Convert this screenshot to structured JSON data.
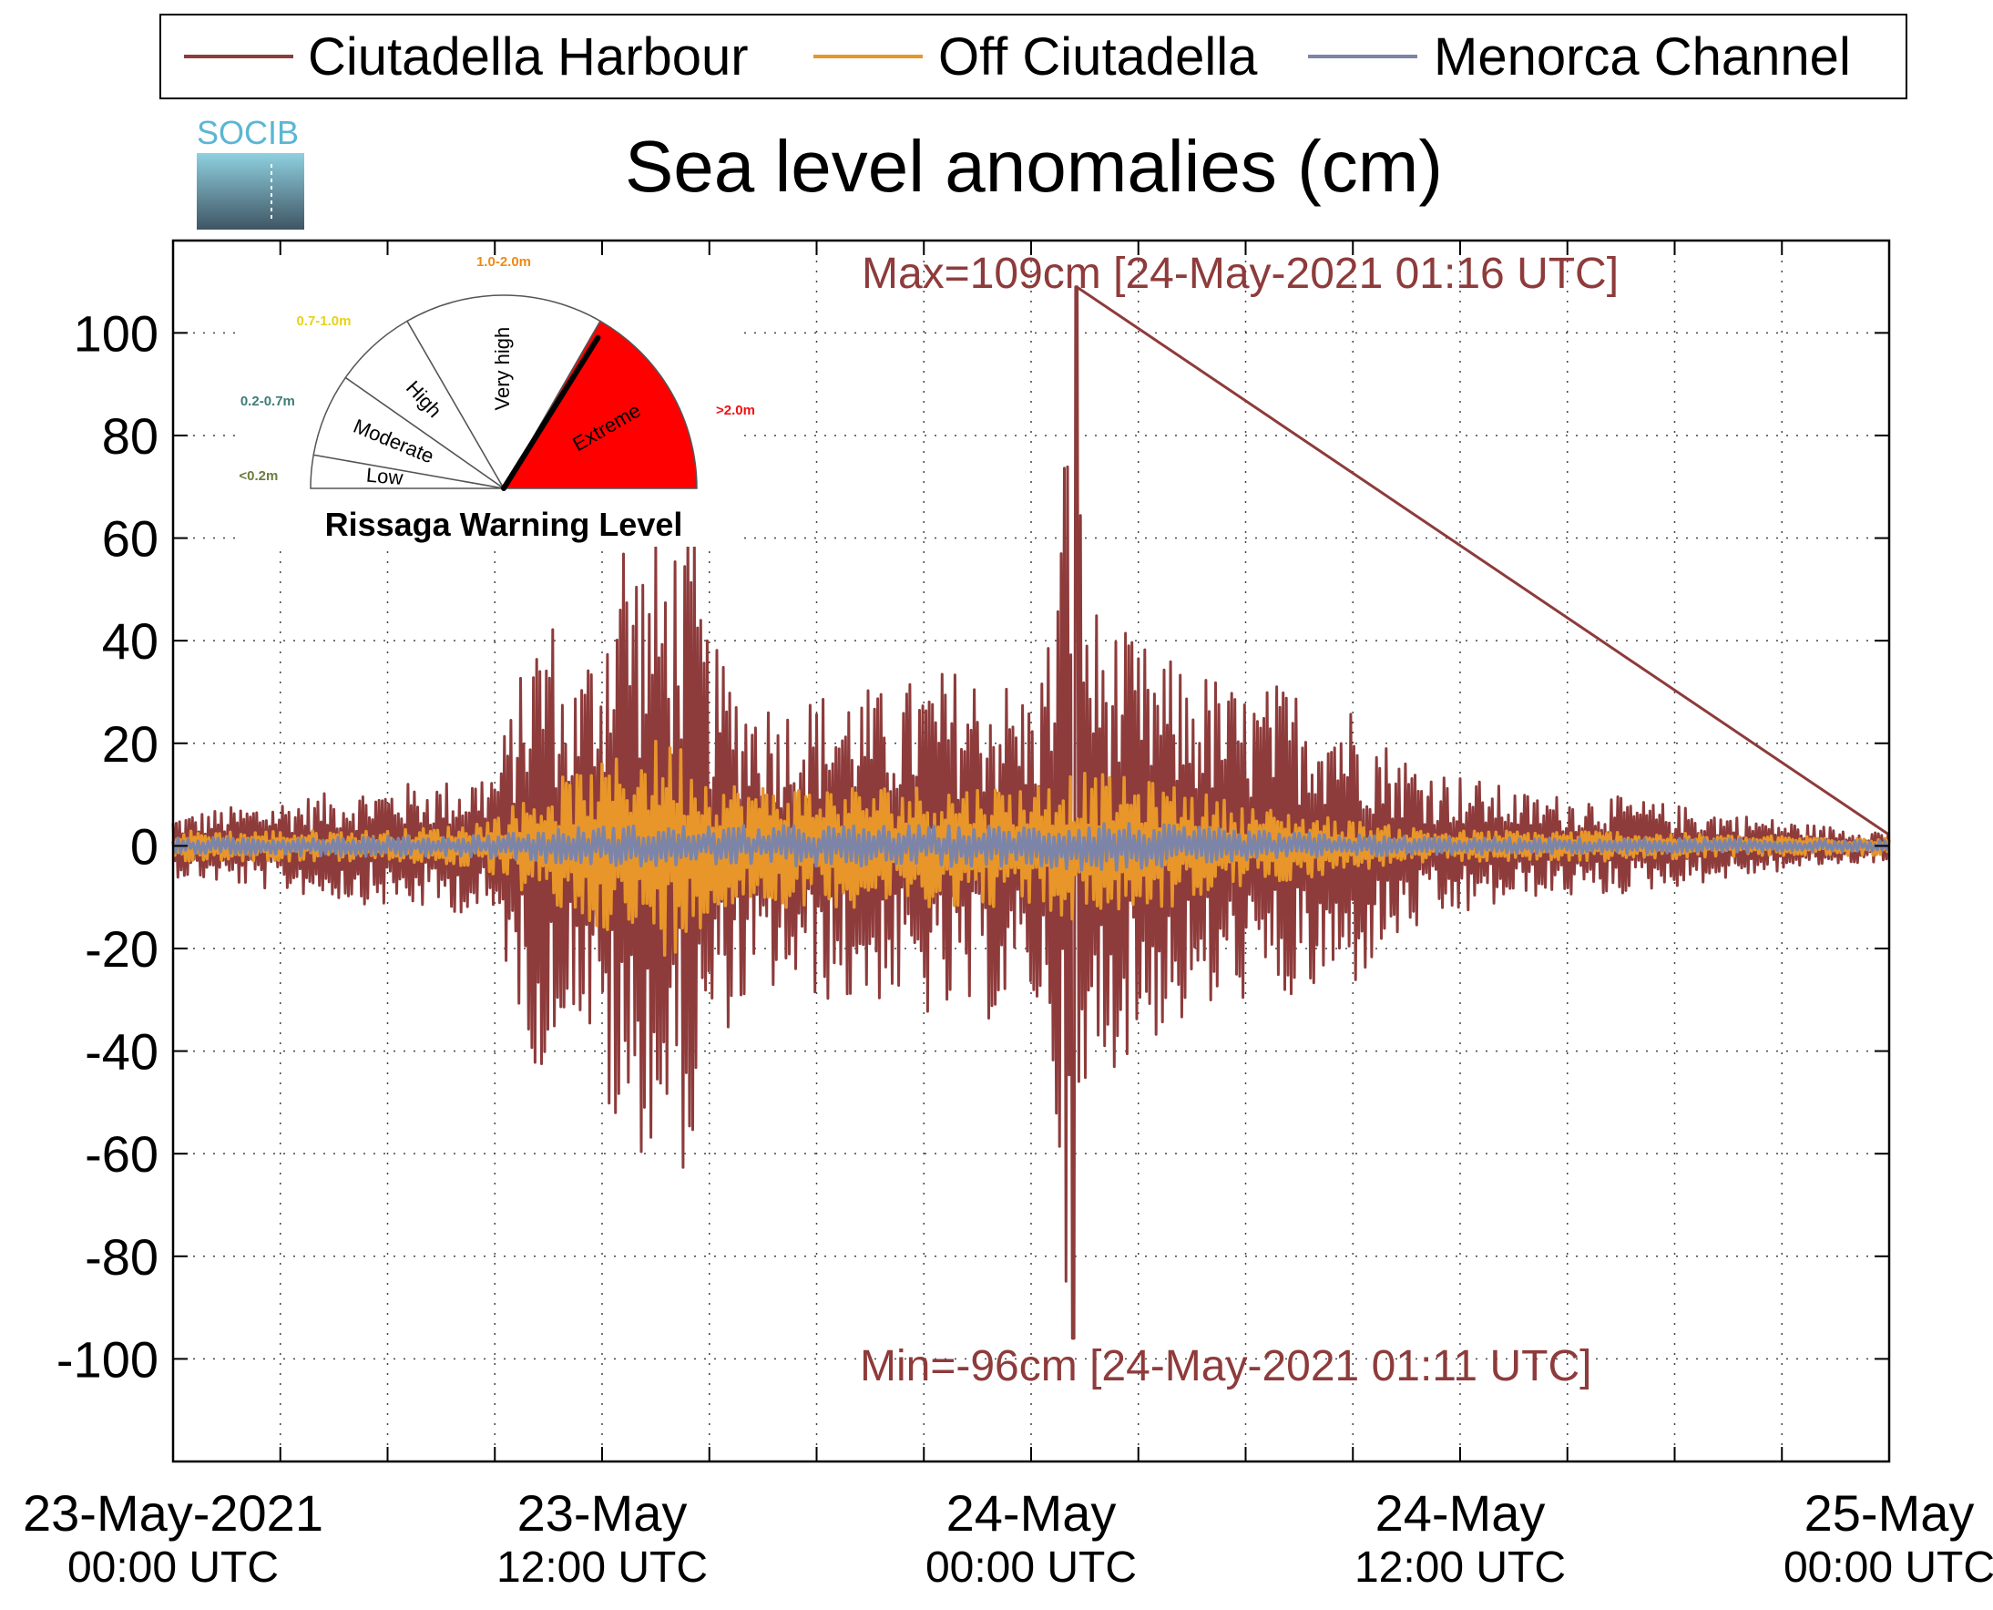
{
  "chart_data": {
    "type": "line",
    "title": "Sea level anomalies (cm)",
    "logo_text": "SOCIB",
    "ylim": [
      -120,
      118
    ],
    "yticks": [
      -100,
      -80,
      -60,
      -40,
      -20,
      0,
      20,
      40,
      60,
      80,
      100
    ],
    "xlim_hours": [
      0,
      48
    ],
    "x_labels": [
      {
        "hour": 0,
        "date": "23-May-2021",
        "time": "00:00 UTC"
      },
      {
        "hour": 12,
        "date": "23-May",
        "time": "12:00 UTC"
      },
      {
        "hour": 24,
        "date": "24-May",
        "time": "00:00 UTC"
      },
      {
        "hour": 36,
        "date": "24-May",
        "time": "12:00 UTC"
      },
      {
        "hour": 48,
        "date": "25-May",
        "time": "00:00 UTC"
      }
    ],
    "grid": true,
    "legend_position": "top",
    "series": [
      {
        "name": "Ciutadella Harbour",
        "color": "#8e3b3b",
        "envelope": [
          [
            0,
            6
          ],
          [
            2,
            8
          ],
          [
            4,
            10
          ],
          [
            6,
            12
          ],
          [
            8,
            13
          ],
          [
            9,
            16
          ],
          [
            10,
            40
          ],
          [
            10.5,
            50
          ],
          [
            11,
            30
          ],
          [
            12,
            45
          ],
          [
            12.5,
            68
          ],
          [
            13,
            60
          ],
          [
            13.5,
            60
          ],
          [
            14,
            62
          ],
          [
            14.5,
            65
          ],
          [
            15,
            40
          ],
          [
            16,
            32
          ],
          [
            17,
            28
          ],
          [
            18,
            30
          ],
          [
            19,
            32
          ],
          [
            20,
            30
          ],
          [
            21,
            34
          ],
          [
            22,
            35
          ],
          [
            23,
            34
          ],
          [
            24,
            30
          ],
          [
            24.6,
            45
          ],
          [
            25.2,
            109
          ],
          [
            25.6,
            50
          ],
          [
            26,
            45
          ],
          [
            27,
            40
          ],
          [
            28,
            36
          ],
          [
            29,
            34
          ],
          [
            30,
            30
          ],
          [
            31,
            32
          ],
          [
            32,
            30
          ],
          [
            33,
            28
          ],
          [
            34,
            20
          ],
          [
            35,
            16
          ],
          [
            36,
            14
          ],
          [
            37,
            12
          ],
          [
            38,
            10
          ],
          [
            40,
            10
          ],
          [
            42,
            8
          ],
          [
            44,
            6
          ],
          [
            46,
            4
          ],
          [
            48,
            3
          ]
        ]
      },
      {
        "name": "Off Ciutadella",
        "color": "#e8962a",
        "envelope": [
          [
            0,
            3
          ],
          [
            6,
            3
          ],
          [
            8,
            4
          ],
          [
            9,
            6
          ],
          [
            10,
            10
          ],
          [
            11,
            14
          ],
          [
            12,
            16
          ],
          [
            13,
            20
          ],
          [
            14,
            22
          ],
          [
            15,
            14
          ],
          [
            16,
            12
          ],
          [
            18,
            12
          ],
          [
            20,
            12
          ],
          [
            22,
            12
          ],
          [
            23,
            12
          ],
          [
            24,
            12
          ],
          [
            25,
            15
          ],
          [
            26,
            14
          ],
          [
            28,
            12
          ],
          [
            30,
            8
          ],
          [
            32,
            6
          ],
          [
            34,
            4
          ],
          [
            36,
            3
          ],
          [
            40,
            3
          ],
          [
            44,
            2
          ],
          [
            48,
            2
          ]
        ]
      },
      {
        "name": "Menorca Channel",
        "color": "#7c84a8",
        "envelope": [
          [
            0,
            1.5
          ],
          [
            4,
            2
          ],
          [
            8,
            2
          ],
          [
            10,
            3
          ],
          [
            12,
            4
          ],
          [
            14,
            4
          ],
          [
            16,
            4
          ],
          [
            18,
            4
          ],
          [
            20,
            4
          ],
          [
            22,
            4
          ],
          [
            24,
            4
          ],
          [
            26,
            5
          ],
          [
            28,
            4
          ],
          [
            30,
            3
          ],
          [
            34,
            2
          ],
          [
            38,
            1.5
          ],
          [
            42,
            1.5
          ],
          [
            48,
            1
          ]
        ]
      }
    ],
    "annotations": {
      "max": "Max=109cm [24-May-2021 01:16 UTC]",
      "min": "Min=-96cm [24-May-2021 01:11 UTC]",
      "max_value": 109,
      "min_value": -96
    },
    "warning_gauge": {
      "title": "Rissaga Warning Level",
      "levels": [
        {
          "label": "Low",
          "range": "<0.2m",
          "range_color": "#6b7d3e"
        },
        {
          "label": "Moderate",
          "range": "0.2-0.7m",
          "range_color": "#3f7b78"
        },
        {
          "label": "High",
          "range": "0.7-1.0m",
          "range_color": "#e6d21a"
        },
        {
          "label": "Very high",
          "range": "1.0-2.0m",
          "range_color": "#f08a14"
        },
        {
          "label": "Extreme",
          "range": ">2.0m",
          "range_color": "#f21010"
        }
      ],
      "active_level": "Extreme",
      "active_color": "#ff0000"
    }
  }
}
